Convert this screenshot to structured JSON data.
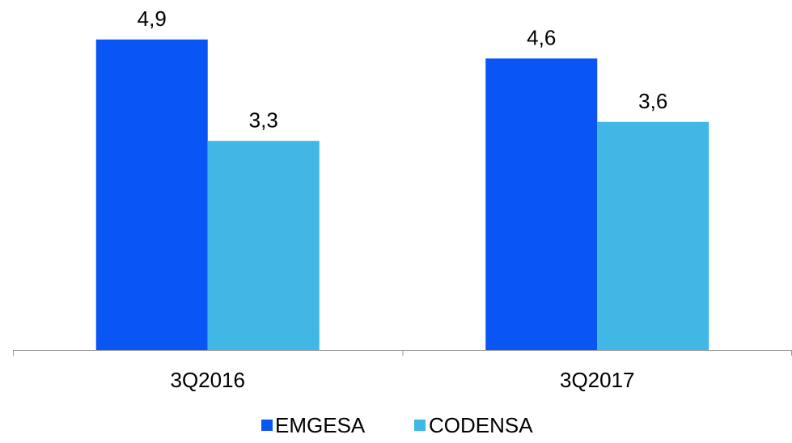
{
  "chart_data": {
    "type": "bar",
    "categories": [
      "3Q2016",
      "3Q2017"
    ],
    "series": [
      {
        "name": "EMGESA",
        "values": [
          4.9,
          4.6
        ],
        "labels": [
          "4,9",
          "4,6"
        ],
        "color": "#0a56f5"
      },
      {
        "name": "CODENSA",
        "values": [
          3.3,
          3.6
        ],
        "labels": [
          "3,3",
          "3,6"
        ],
        "color": "#40b7e4"
      }
    ],
    "ylim": [
      0,
      5.3
    ],
    "grid": false,
    "legend": "bottom",
    "axis_color": "#9a9a9a"
  }
}
